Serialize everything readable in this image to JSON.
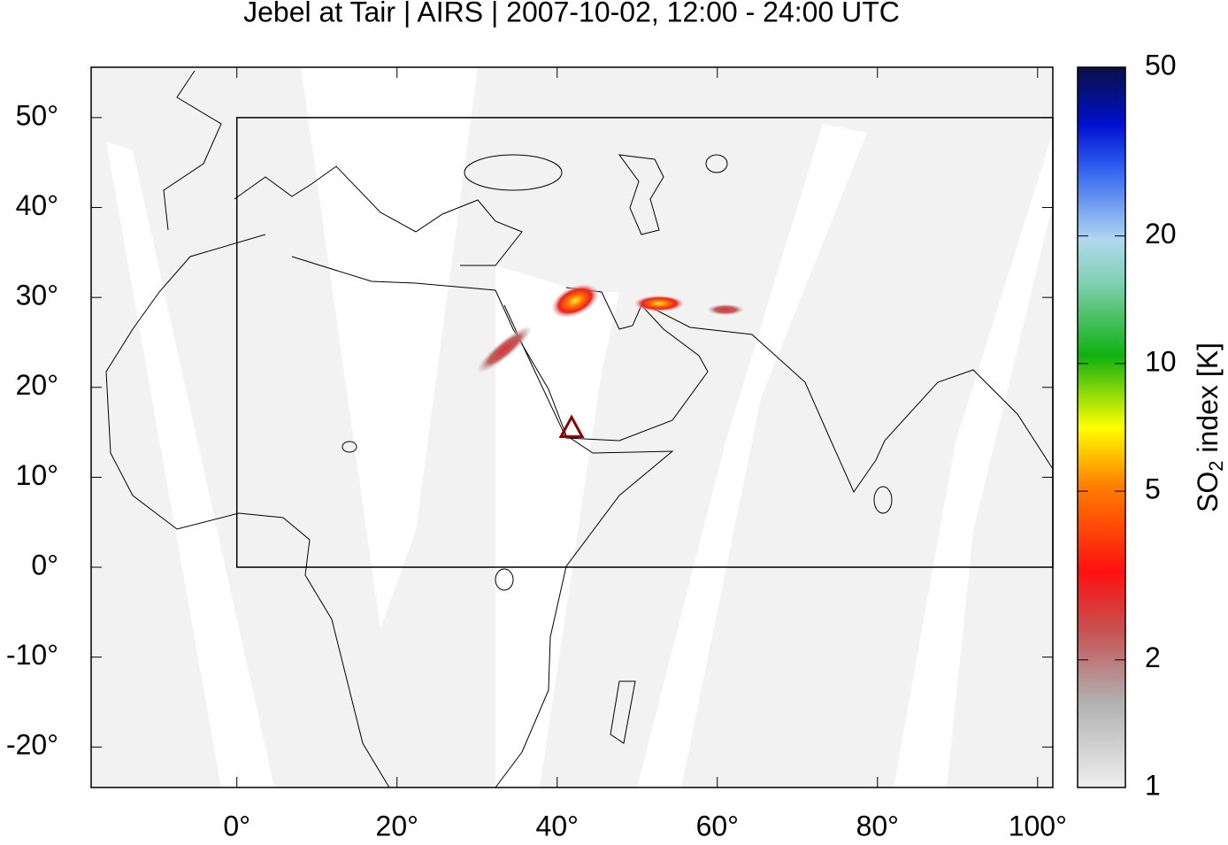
{
  "map": {
    "title": "Jebel at Tair | AIRS | 2007-10-02, 12:00 - 24:00 UTC",
    "xlim": [
      -18.2,
      101.9
    ],
    "ylim": [
      -24.5,
      55.6
    ],
    "xticks": [
      {
        "value": 0,
        "label": "0°"
      },
      {
        "value": 20,
        "label": "20°"
      },
      {
        "value": 40,
        "label": "40°"
      },
      {
        "value": 60,
        "label": "60°"
      },
      {
        "value": 80,
        "label": "80°"
      },
      {
        "value": 100,
        "label": "100°"
      }
    ],
    "yticks": [
      {
        "value": 50,
        "label": "50°"
      },
      {
        "value": 40,
        "label": "40°"
      },
      {
        "value": 30,
        "label": "30°"
      },
      {
        "value": 20,
        "label": "20°"
      },
      {
        "value": 10,
        "label": "10°"
      },
      {
        "value": 0,
        "label": "0°"
      },
      {
        "value": -10,
        "label": "-10°"
      },
      {
        "value": -20,
        "label": "-20°"
      }
    ],
    "region_box": {
      "lon": [
        0,
        101.9
      ],
      "lat": [
        0,
        50
      ]
    },
    "volcano": {
      "lon": 41.8,
      "lat": 15.5,
      "color": "#8b0000"
    },
    "colorbar": {
      "label_parts": [
        "SO",
        "2",
        " index [K]"
      ],
      "log_scale": true,
      "lim": [
        1,
        50
      ],
      "ticks": [
        1,
        2,
        5,
        10,
        20,
        50
      ]
    }
  }
}
